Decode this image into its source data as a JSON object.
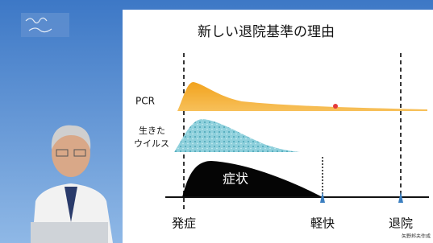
{
  "slide": {
    "title": "新しい退院基準の理由",
    "labels": {
      "pcr": "PCR",
      "virus_line1": "生きた",
      "virus_line2": "ウイルス",
      "symptom": "症状"
    },
    "timeline": {
      "onset": "発症",
      "relief": "軽快",
      "discharge": "退院"
    },
    "credit": "矢野邦夫作成"
  }
}
